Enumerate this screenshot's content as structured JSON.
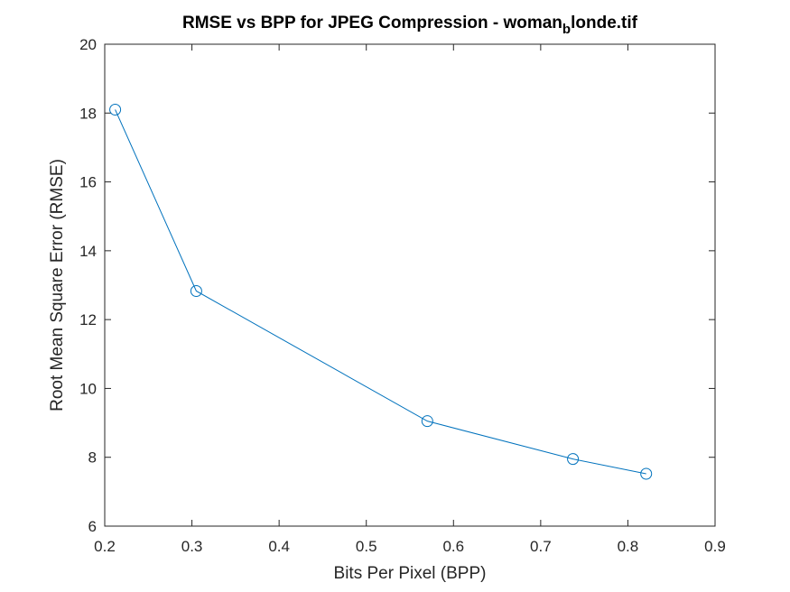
{
  "chart_data": {
    "type": "line",
    "title_main": "RMSE vs BPP for JPEG Compression - woman",
    "title_sub": "b",
    "title_tail": "londe.tif",
    "xlabel": "Bits Per Pixel (BPP)",
    "ylabel": "Root Mean Square Error (RMSE)",
    "xlim": [
      0.2,
      0.9
    ],
    "ylim": [
      6,
      20
    ],
    "xticks": [
      0.2,
      0.3,
      0.4,
      0.5,
      0.6,
      0.7,
      0.8,
      0.9
    ],
    "yticks": [
      6,
      8,
      10,
      12,
      14,
      16,
      18,
      20
    ],
    "grid": false,
    "line_color": "#0072BD",
    "series": [
      {
        "x": [
          0.212,
          0.305,
          0.57,
          0.737,
          0.821
        ],
        "y": [
          18.1,
          12.83,
          9.05,
          7.95,
          7.52
        ],
        "marker": "circle"
      }
    ]
  }
}
